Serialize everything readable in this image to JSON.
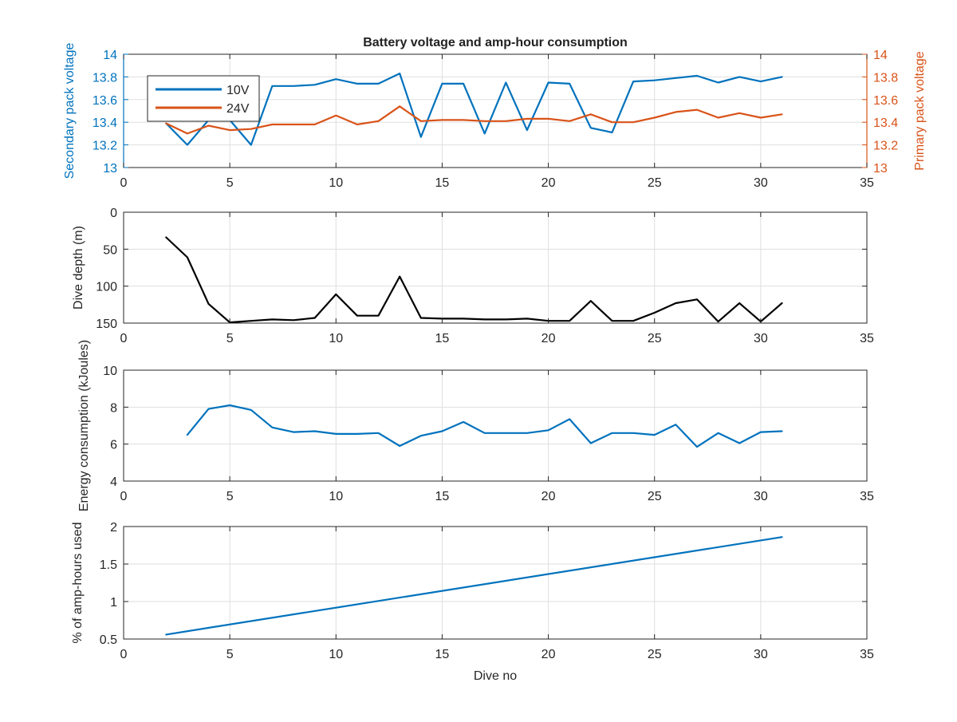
{
  "figure": {
    "title": "Battery voltage and amp-hour consumption",
    "xlabel": "Dive no"
  },
  "colors": {
    "blue": "#0072BD",
    "orange": "#D95319",
    "black": "#000000",
    "axis_text": "#262626",
    "grid": "#DFDFDF"
  },
  "chart_data": [
    {
      "type": "line",
      "title": "Battery voltage and amp-hour consumption",
      "xlabel": "",
      "ylabel": "Secondary pack voltage",
      "ylabel_right": "Primary pack voltage",
      "xlim": [
        0,
        35
      ],
      "ylim": [
        13,
        14
      ],
      "ylim_right": [
        13,
        14
      ],
      "xticks": [
        "0",
        "5",
        "10",
        "15",
        "20",
        "25",
        "30",
        "35"
      ],
      "yticks": [
        "13",
        "13.2",
        "13.4",
        "13.6",
        "13.8",
        "14"
      ],
      "yticks_right": [
        "13",
        "13.2",
        "13.4",
        "13.6",
        "13.8",
        "14"
      ],
      "grid": true,
      "legend": {
        "position": "top-left",
        "entries": [
          "10V",
          "24V"
        ]
      },
      "series": [
        {
          "name": "10V",
          "axis": "left",
          "color": "#0072BD",
          "x": [
            2,
            3,
            4,
            5,
            6,
            7,
            8,
            9,
            10,
            11,
            12,
            13,
            14,
            15,
            16,
            17,
            18,
            19,
            20,
            21,
            22,
            23,
            24,
            25,
            26,
            27,
            28,
            29,
            30,
            31
          ],
          "y": [
            13.39,
            13.2,
            13.42,
            13.42,
            13.2,
            13.72,
            13.72,
            13.73,
            13.78,
            13.74,
            13.74,
            13.83,
            13.27,
            13.74,
            13.74,
            13.3,
            13.75,
            13.33,
            13.75,
            13.74,
            13.35,
            13.31,
            13.76,
            13.77,
            13.79,
            13.81,
            13.75,
            13.8,
            13.76,
            13.8
          ]
        },
        {
          "name": "24V",
          "axis": "right",
          "color": "#D95319",
          "x": [
            2,
            3,
            4,
            5,
            6,
            7,
            8,
            9,
            10,
            11,
            12,
            13,
            14,
            15,
            16,
            17,
            18,
            19,
            20,
            21,
            22,
            23,
            24,
            25,
            26,
            27,
            28,
            29,
            30,
            31
          ],
          "y": [
            13.39,
            13.3,
            13.37,
            13.33,
            13.34,
            13.38,
            13.38,
            13.38,
            13.46,
            13.38,
            13.41,
            13.54,
            13.41,
            13.42,
            13.42,
            13.41,
            13.41,
            13.43,
            13.43,
            13.41,
            13.47,
            13.4,
            13.4,
            13.44,
            13.49,
            13.51,
            13.44,
            13.48,
            13.44,
            13.47
          ]
        }
      ]
    },
    {
      "type": "line",
      "xlabel": "",
      "ylabel": "Dive depth (m)",
      "xlim": [
        0,
        35
      ],
      "ylim": [
        0,
        150
      ],
      "y_reversed": true,
      "xticks": [
        "0",
        "5",
        "10",
        "15",
        "20",
        "25",
        "30",
        "35"
      ],
      "yticks": [
        "0",
        "50",
        "100",
        "150"
      ],
      "grid": true,
      "series": [
        {
          "color": "#000000",
          "x": [
            2,
            3,
            4,
            5,
            6,
            7,
            8,
            9,
            10,
            11,
            12,
            13,
            14,
            15,
            16,
            17,
            18,
            19,
            20,
            21,
            22,
            23,
            24,
            25,
            26,
            27,
            28,
            29,
            30,
            31
          ],
          "y": [
            34,
            61,
            124,
            149,
            147,
            145,
            146,
            143,
            111,
            140,
            140,
            87,
            143,
            144,
            144,
            145,
            145,
            144,
            147,
            147,
            120,
            147,
            147,
            136,
            123,
            118,
            148,
            123,
            148,
            123
          ]
        }
      ]
    },
    {
      "type": "line",
      "xlabel": "",
      "ylabel": "Energy consumption (kJoules)",
      "xlim": [
        0,
        35
      ],
      "ylim": [
        4,
        10
      ],
      "xticks": [
        "0",
        "5",
        "10",
        "15",
        "20",
        "25",
        "30",
        "35"
      ],
      "yticks": [
        "4",
        "6",
        "8",
        "10"
      ],
      "grid": true,
      "series": [
        {
          "color": "#0072BD",
          "x": [
            3,
            4,
            5,
            6,
            7,
            8,
            9,
            10,
            11,
            12,
            13,
            14,
            15,
            16,
            17,
            18,
            19,
            20,
            21,
            22,
            23,
            24,
            25,
            26,
            27,
            28,
            29,
            30,
            31
          ],
          "y": [
            6.5,
            7.9,
            8.1,
            7.85,
            6.9,
            6.65,
            6.7,
            6.55,
            6.55,
            6.6,
            5.9,
            6.45,
            6.7,
            7.2,
            6.6,
            6.6,
            6.6,
            6.75,
            7.35,
            6.05,
            6.6,
            6.6,
            6.5,
            7.05,
            5.85,
            6.6,
            6.05,
            6.65,
            6.7
          ]
        }
      ]
    },
    {
      "type": "line",
      "xlabel": "Dive no",
      "ylabel": "% of amp-hours used",
      "xlim": [
        0,
        35
      ],
      "ylim": [
        0.5,
        2
      ],
      "xticks": [
        "0",
        "5",
        "10",
        "15",
        "20",
        "25",
        "30",
        "35"
      ],
      "yticks": [
        "0.5",
        "1",
        "1.5",
        "2"
      ],
      "grid": true,
      "series": [
        {
          "color": "#0072BD",
          "x": [
            2,
            31
          ],
          "y": [
            0.56,
            1.86
          ]
        }
      ]
    }
  ]
}
